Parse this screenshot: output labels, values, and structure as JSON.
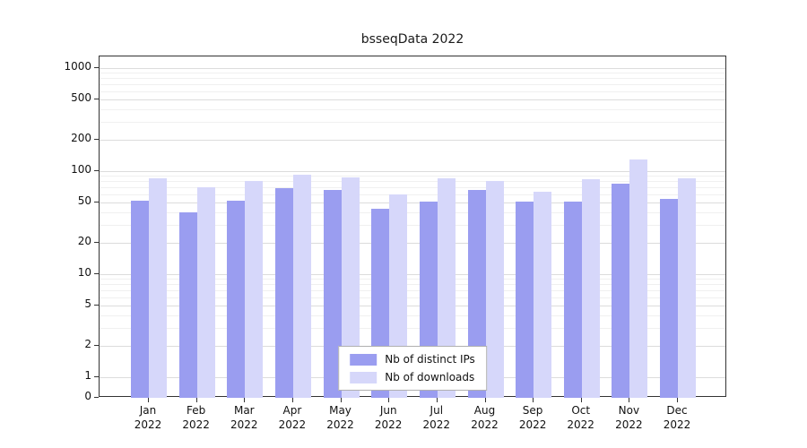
{
  "chart_data": {
    "type": "bar",
    "title": "bsseqData 2022",
    "categories": [
      "Jan 2022",
      "Feb 2022",
      "Mar 2022",
      "Apr 2022",
      "May 2022",
      "Jun 2022",
      "Jul 2022",
      "Aug 2022",
      "Sep 2022",
      "Oct 2022",
      "Nov 2022",
      "Dec 2022"
    ],
    "series": [
      {
        "name": "Nb of distinct IPs",
        "color": "#9a9df0",
        "values": [
          52,
          40,
          52,
          68,
          66,
          43,
          51,
          66,
          51,
          51,
          75,
          54
        ]
      },
      {
        "name": "Nb of downloads",
        "color": "#d6d7fa",
        "values": [
          85,
          70,
          80,
          92,
          87,
          60,
          85,
          80,
          63,
          83,
          130,
          85
        ]
      }
    ],
    "yscale": "log",
    "y_ticks": [
      1000,
      500,
      200,
      100,
      50,
      20,
      10,
      5,
      2,
      1,
      0
    ],
    "ylim": [
      0,
      1000
    ],
    "xlabel": "",
    "ylabel": "",
    "grid": true,
    "legend_position": "bottom-center"
  }
}
